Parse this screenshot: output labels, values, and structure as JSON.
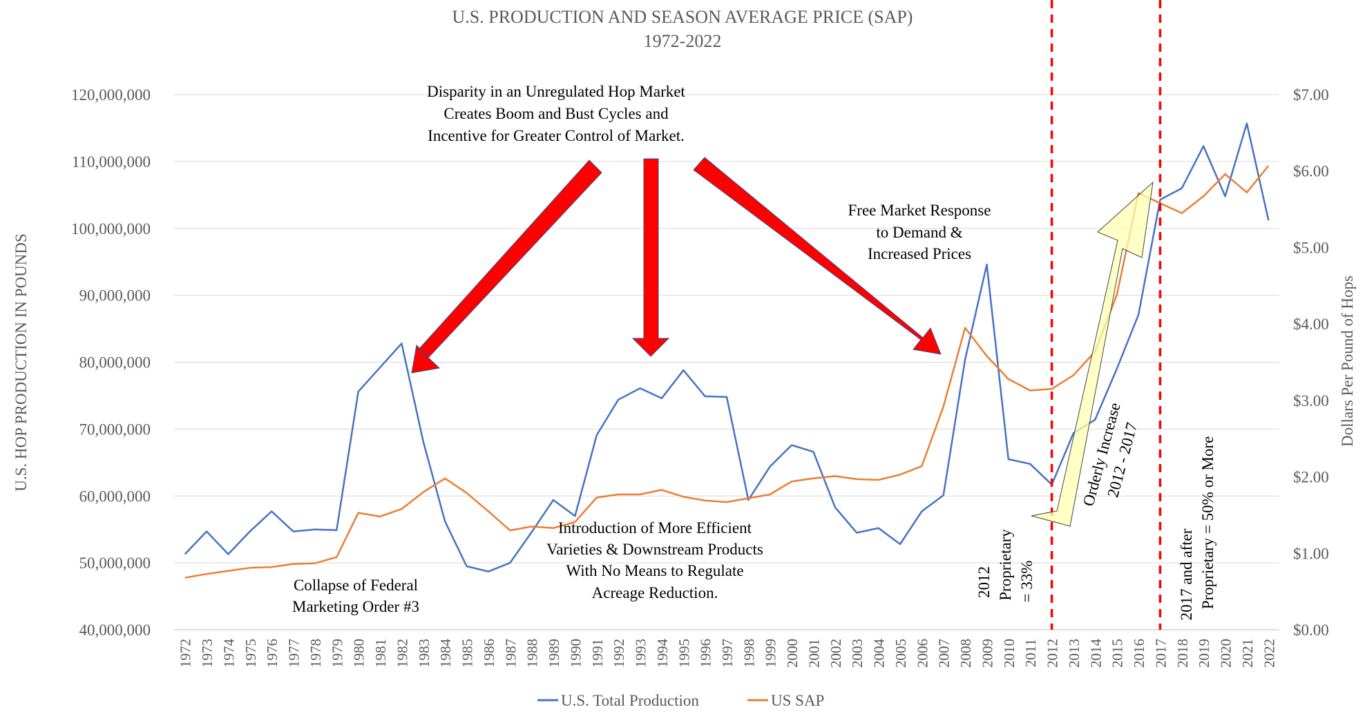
{
  "chart_data": {
    "type": "line",
    "title": "U.S. PRODUCTION AND SEASON AVERAGE PRICE (SAP)",
    "subtitle": "1972-2022",
    "ylabel": "U.S. HOP PRODUCTION IN POUNDS",
    "y2label": "Dollars Per Pound of Hops",
    "ylim": [
      40000000,
      120000000
    ],
    "y2lim": [
      0,
      7
    ],
    "yticks": [
      "40,000,000",
      "50,000,000",
      "60,000,000",
      "70,000,000",
      "80,000,000",
      "90,000,000",
      "100,000,000",
      "110,000,000",
      "120,000,000"
    ],
    "y2ticks": [
      "$0.00",
      "$1.00",
      "$2.00",
      "$3.00",
      "$4.00",
      "$5.00",
      "$6.00",
      "$7.00"
    ],
    "grid": true,
    "legend_position": "bottom",
    "x": [
      "1972",
      "1973",
      "1974",
      "1975",
      "1976",
      "1977",
      "1978",
      "1979",
      "1980",
      "1981",
      "1982",
      "1983",
      "1984",
      "1985",
      "1986",
      "1987",
      "1988",
      "1989",
      "1990",
      "1991",
      "1992",
      "1993",
      "1994",
      "1995",
      "1996",
      "1997",
      "1998",
      "1999",
      "2000",
      "2001",
      "2002",
      "2003",
      "2004",
      "2005",
      "2006",
      "2007",
      "2008",
      "2009",
      "2010",
      "2011",
      "2012",
      "2013",
      "2014",
      "2015",
      "2016",
      "2017",
      "2018",
      "2019",
      "2020",
      "2021",
      "2022"
    ],
    "series": [
      {
        "name": "U.S. Total Production",
        "color": "#4472C4",
        "axis": "left",
        "values": [
          51300000,
          54700000,
          51300000,
          54700000,
          57700000,
          54700000,
          55000000,
          54900000,
          75600000,
          79200000,
          82800000,
          68100000,
          56200000,
          49500000,
          48700000,
          50000000,
          54600000,
          59400000,
          57000000,
          69100000,
          74400000,
          76100000,
          74600000,
          78800000,
          74900000,
          74800000,
          59400000,
          64400000,
          67600000,
          66600000,
          58300000,
          54500000,
          55200000,
          52800000,
          57700000,
          60100000,
          80400000,
          94600000,
          65500000,
          64800000,
          61700000,
          69400000,
          71400000,
          79000000,
          87100000,
          104300000,
          106000000,
          112300000,
          104800000,
          115700000,
          101200000
        ]
      },
      {
        "name": "US SAP",
        "color": "#ED7D31",
        "axis": "right",
        "values": [
          0.68,
          0.73,
          0.77,
          0.81,
          0.82,
          0.86,
          0.87,
          0.95,
          1.53,
          1.48,
          1.58,
          1.8,
          1.98,
          1.79,
          1.55,
          1.3,
          1.35,
          1.33,
          1.41,
          1.73,
          1.77,
          1.77,
          1.83,
          1.74,
          1.69,
          1.67,
          1.72,
          1.77,
          1.94,
          1.98,
          2.01,
          1.97,
          1.96,
          2.03,
          2.14,
          2.92,
          3.95,
          3.58,
          3.28,
          3.13,
          3.15,
          3.33,
          3.64,
          4.38,
          5.71,
          5.58,
          5.45,
          5.67,
          5.96,
          5.72,
          6.07
        ]
      }
    ],
    "vlines": [
      {
        "year": "2012",
        "color": "#FF0000"
      },
      {
        "year": "2017",
        "color": "#FF0000"
      }
    ],
    "annotations": {
      "disparity": [
        "Disparity in an Unregulated Hop Market",
        "Creates Boom and Bust Cycles and",
        "Incentive for Greater Control of Market."
      ],
      "free_market": [
        "Free Market Response",
        "to Demand &",
        "Increased Prices"
      ],
      "collapse": [
        "Collapse of Federal",
        "Marketing Order #3"
      ],
      "introduction": [
        "Introduction of More Efficient",
        "Varieties & Downstream Products",
        "With No Means to Regulate",
        "Acreage Reduction."
      ],
      "proprietary_2012": [
        "2012",
        "Proprietary",
        "= 33%"
      ],
      "orderly": [
        "Orderly Increase",
        "2012 - 2017"
      ],
      "proprietary_2017": [
        "2017 and after",
        "Proprietary = 50% or More"
      ]
    },
    "colors": {
      "arrow_red": "#FF0000",
      "arrow_yellow": "#FFFFB3",
      "grid": "#D9D9D9",
      "text": "#595959"
    }
  }
}
